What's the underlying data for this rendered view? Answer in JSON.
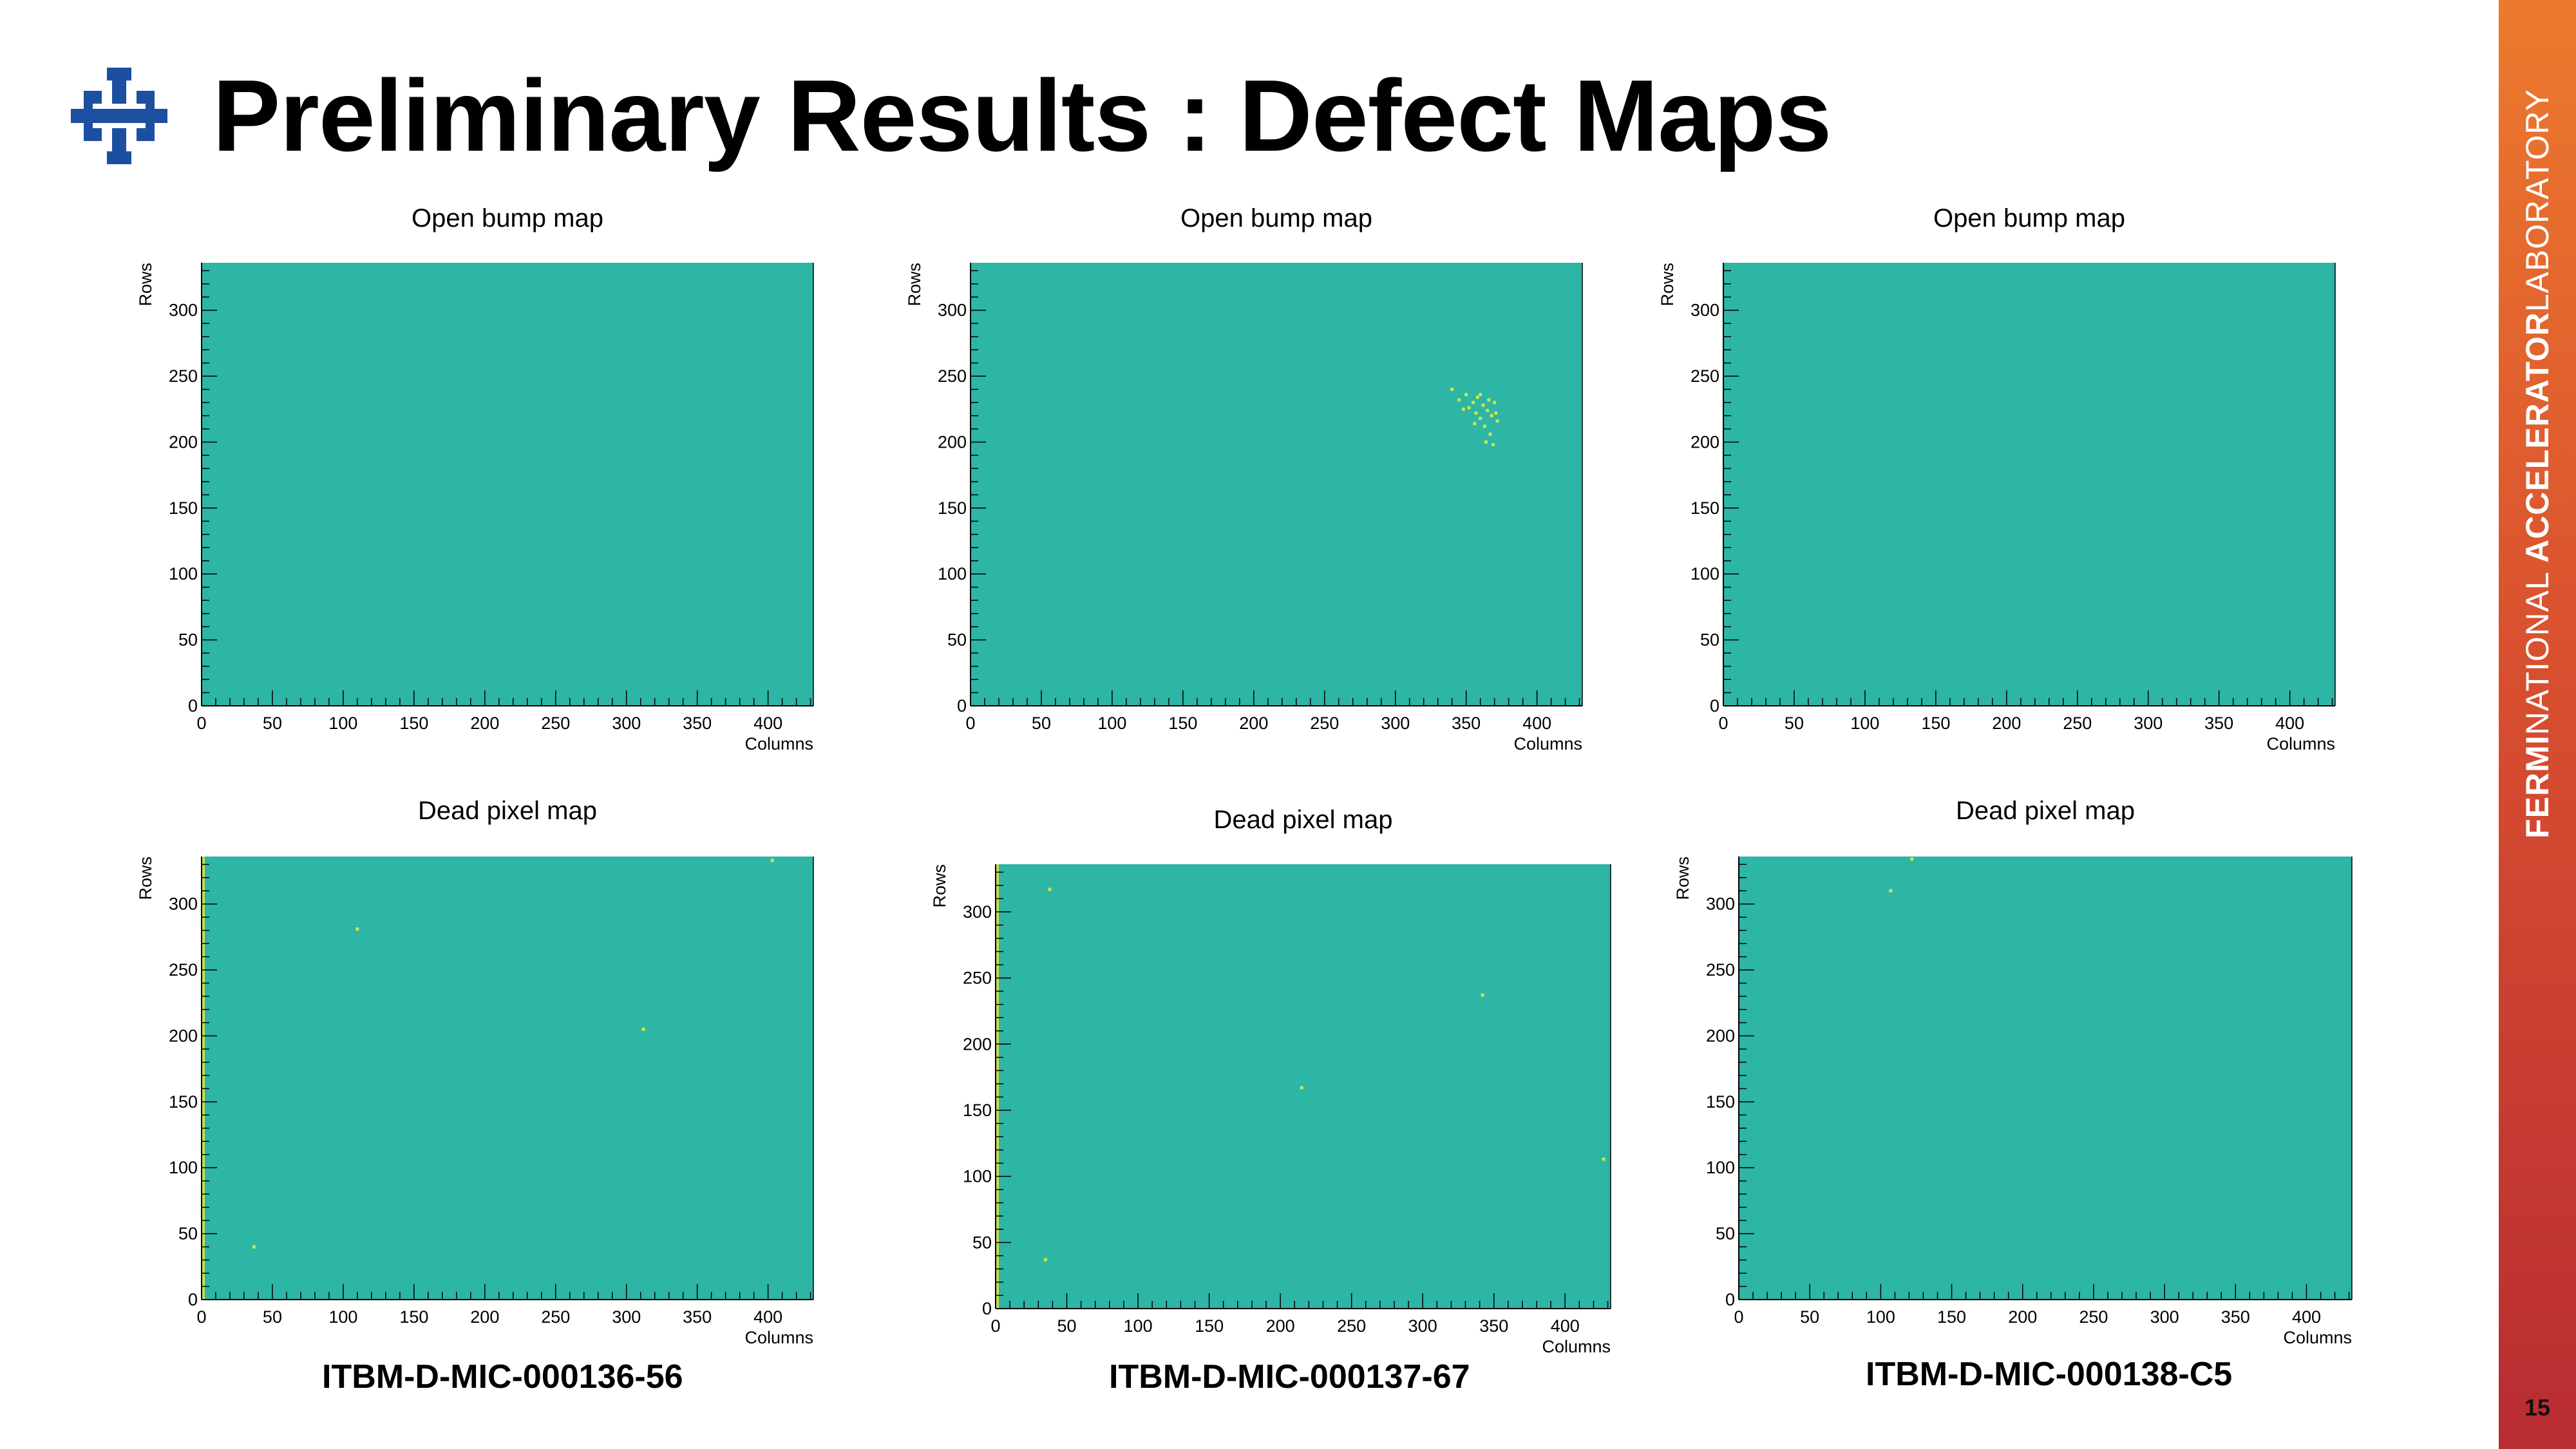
{
  "title": "Preliminary Results : Defect Maps",
  "sidebar": {
    "brand_bold": "FERMI",
    "brand_mid": "NATIONAL",
    "brand_bold2": "ACCELERATOR",
    "brand_end": "LABORATORY"
  },
  "page_number": "15",
  "chips": [
    "ITBM-D-MIC-000136-56",
    "ITBM-D-MIC-000137-67",
    "ITBM-D-MIC-000138-C5"
  ],
  "colors": {
    "fill": "#2db5a5",
    "defect": "#c8e84a",
    "defect_edge": "#e9e23a",
    "logo": "#1c4fa0",
    "band_top": "#ec7a2e",
    "band_bottom": "#b82c33"
  },
  "chart_data": [
    {
      "type": "heatmap",
      "title": "Open bump map",
      "xlabel": "Columns",
      "ylabel": "Rows",
      "xlim": [
        0,
        432
      ],
      "ylim": [
        0,
        336
      ],
      "xticks": [
        0,
        50,
        100,
        150,
        200,
        250,
        300,
        350,
        400
      ],
      "yticks": [
        0,
        50,
        100,
        150,
        200,
        250,
        300
      ],
      "points": []
    },
    {
      "type": "heatmap",
      "title": "Open bump map",
      "xlabel": "Columns",
      "ylabel": "Rows",
      "xlim": [
        0,
        432
      ],
      "ylim": [
        0,
        336
      ],
      "xticks": [
        0,
        50,
        100,
        150,
        200,
        250,
        300,
        350,
        400
      ],
      "yticks": [
        0,
        50,
        100,
        150,
        200,
        250,
        300
      ],
      "points": [
        [
          340,
          240
        ],
        [
          345,
          232
        ],
        [
          350,
          236
        ],
        [
          352,
          226
        ],
        [
          355,
          230
        ],
        [
          357,
          222
        ],
        [
          358,
          234
        ],
        [
          360,
          218
        ],
        [
          362,
          228
        ],
        [
          363,
          212
        ],
        [
          365,
          224
        ],
        [
          367,
          206
        ],
        [
          368,
          220
        ],
        [
          370,
          230
        ],
        [
          372,
          216
        ],
        [
          364,
          200
        ],
        [
          356,
          214
        ],
        [
          366,
          232
        ],
        [
          360,
          236
        ],
        [
          371,
          222
        ],
        [
          348,
          225
        ],
        [
          369,
          198
        ]
      ]
    },
    {
      "type": "heatmap",
      "title": "Open bump map",
      "xlabel": "Columns",
      "ylabel": "Rows",
      "xlim": [
        0,
        432
      ],
      "ylim": [
        0,
        336
      ],
      "xticks": [
        0,
        50,
        100,
        150,
        200,
        250,
        300,
        350,
        400
      ],
      "yticks": [
        0,
        50,
        100,
        150,
        200,
        250,
        300
      ],
      "points": []
    },
    {
      "type": "heatmap",
      "title": "Dead pixel map",
      "xlabel": "Columns",
      "ylabel": "Rows",
      "xlim": [
        0,
        432
      ],
      "ylim": [
        0,
        336
      ],
      "xticks": [
        0,
        50,
        100,
        150,
        200,
        250,
        300,
        350,
        400
      ],
      "yticks": [
        0,
        50,
        100,
        150,
        200,
        250,
        300
      ],
      "edge_column": 0,
      "points": [
        [
          403,
          333
        ],
        [
          110,
          281
        ],
        [
          37,
          40
        ],
        [
          312,
          205
        ]
      ]
    },
    {
      "type": "heatmap",
      "title": "Dead pixel map",
      "xlabel": "Columns",
      "ylabel": "Rows",
      "xlim": [
        0,
        432
      ],
      "ylim": [
        0,
        336
      ],
      "xticks": [
        0,
        50,
        100,
        150,
        200,
        250,
        300,
        350,
        400
      ],
      "yticks": [
        0,
        50,
        100,
        150,
        200,
        250,
        300
      ],
      "edge_column": 0,
      "points": [
        [
          215,
          167
        ],
        [
          342,
          237
        ],
        [
          427,
          113
        ],
        [
          38,
          317
        ],
        [
          35,
          37
        ]
      ]
    },
    {
      "type": "heatmap",
      "title": "Dead pixel map",
      "xlabel": "Columns",
      "ylabel": "Rows",
      "xlim": [
        0,
        432
      ],
      "ylim": [
        0,
        336
      ],
      "xticks": [
        0,
        50,
        100,
        150,
        200,
        250,
        300,
        350,
        400
      ],
      "yticks": [
        0,
        50,
        100,
        150,
        200,
        250,
        300
      ],
      "points": [
        [
          107,
          310
        ],
        [
          122,
          334
        ]
      ]
    }
  ]
}
